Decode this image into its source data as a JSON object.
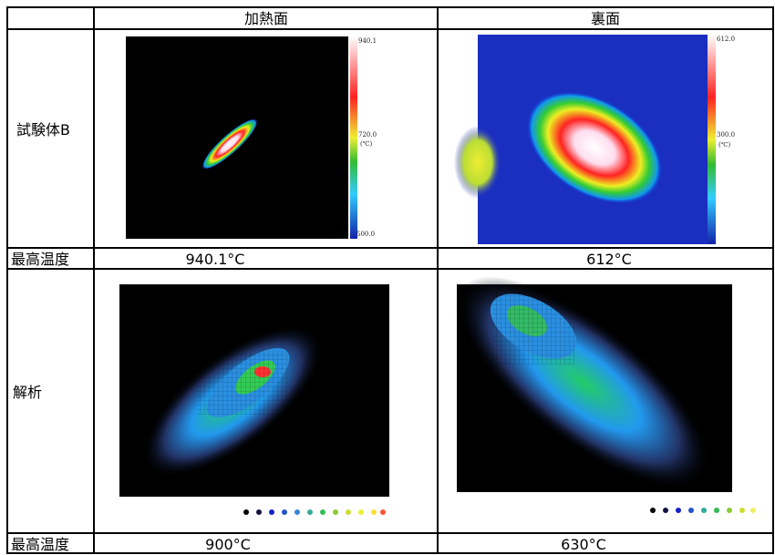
{
  "table": {
    "header": [
      "加熱面",
      "裏面"
    ],
    "rows": [
      {
        "label": "試験体B",
        "colorbars": [
          [
            "940.1",
            "720.0",
            "(℃)",
            "500.0"
          ],
          [
            "612.0",
            "300.0",
            "(℃)"
          ]
        ]
      },
      {
        "label": "最高温度",
        "cells": [
          "940.1°C",
          "612°C"
        ]
      },
      {
        "label": "解析"
      },
      {
        "label": "最高温度",
        "cells": [
          "900°C",
          "630°C"
        ]
      }
    ]
  }
}
